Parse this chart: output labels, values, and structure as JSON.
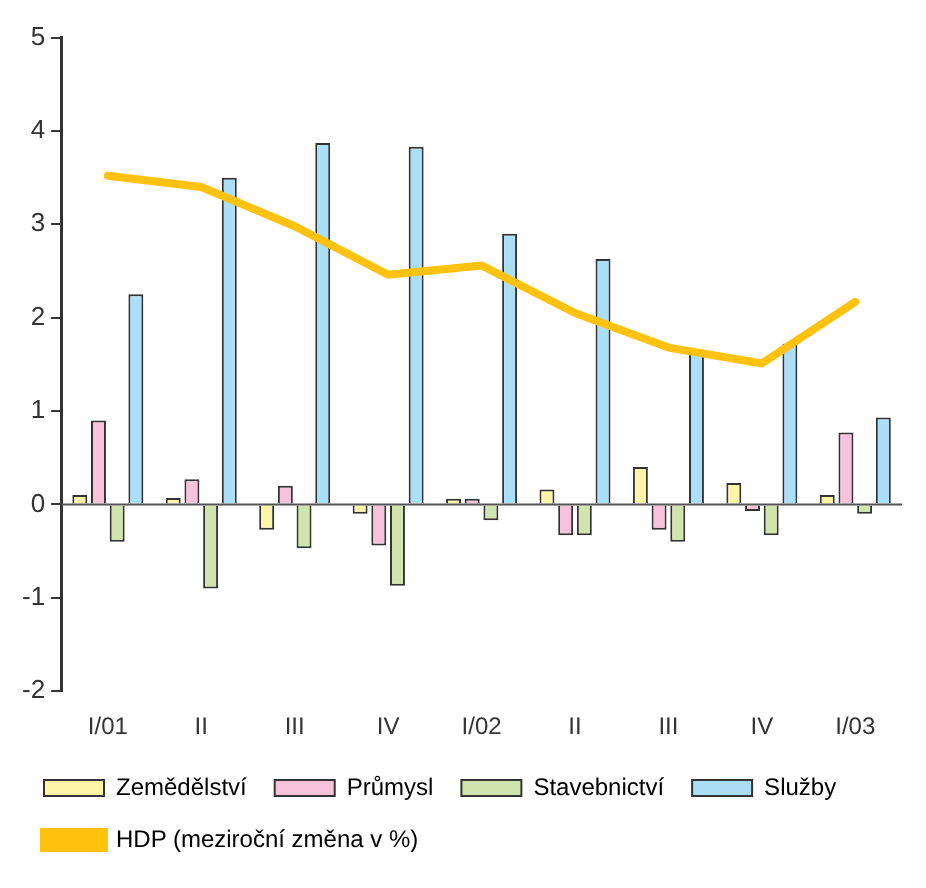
{
  "chart_data": {
    "type": "bar",
    "categories": [
      "I/01",
      "II",
      "III",
      "IV",
      "I/02",
      "II",
      "III",
      "IV",
      "I/03"
    ],
    "series": [
      {
        "name": "Zemědělství",
        "color": "#fff5a8",
        "values": [
          0.1,
          0.07,
          -0.27,
          -0.1,
          0.06,
          0.16,
          0.4,
          0.23,
          0.1
        ]
      },
      {
        "name": "Průmysl",
        "color": "#f7c3da",
        "values": [
          0.9,
          0.27,
          0.2,
          -0.44,
          0.06,
          -0.33,
          -0.27,
          -0.07,
          0.77
        ]
      },
      {
        "name": "Stavebnictví",
        "color": "#d2e4ae",
        "values": [
          -0.4,
          -0.9,
          -0.47,
          -0.87,
          -0.17,
          -0.33,
          -0.4,
          -0.33,
          -0.1
        ]
      },
      {
        "name": "Služby",
        "color": "#abdff8",
        "values": [
          2.25,
          3.5,
          3.87,
          3.83,
          2.9,
          2.63,
          1.65,
          1.72,
          0.93
        ]
      },
      {
        "name": "HDP (meziroční změna v %)",
        "type": "line",
        "color": "#ffc20e",
        "values": [
          3.52,
          3.4,
          2.98,
          2.46,
          2.56,
          2.05,
          1.68,
          1.51,
          2.17
        ]
      }
    ],
    "ylim": [
      -2,
      5
    ],
    "yticks": [
      -2,
      -1,
      0,
      1,
      2,
      3,
      4,
      5
    ],
    "legend": "bottom",
    "marker": "none"
  }
}
